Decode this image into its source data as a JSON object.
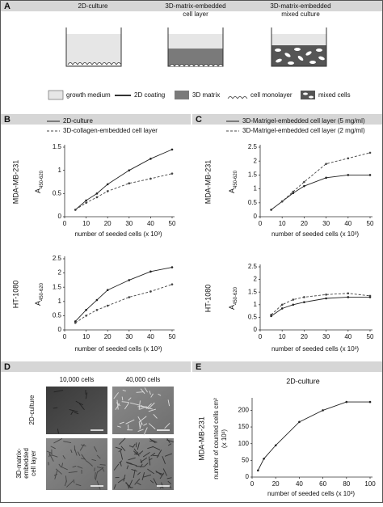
{
  "panel_labels": [
    "A",
    "B",
    "C",
    "D",
    "E"
  ],
  "schematic": {
    "titles": [
      [
        "2D-culture"
      ],
      [
        "3D-matrix-embedded",
        "cell layer"
      ],
      [
        "3D-matrix-embedded",
        "mixed culture"
      ]
    ],
    "legend": [
      "growth medium",
      "2D coating",
      "3D matrix",
      "cell monolayer",
      "mixed cells"
    ]
  },
  "micrographs": {
    "columns": [
      "10,000 cells",
      "40,000 cells"
    ],
    "rows": [
      [
        "2D-culture"
      ],
      [
        "3D-matrix-",
        "embedded",
        "cell layer"
      ]
    ]
  },
  "chart_data": [
    {
      "type": "line",
      "row_label": "MDA-MB-231",
      "ylabel": "A",
      "ylabel_sub": "450-620",
      "xlabel": "number of seeded cells (x 10³)",
      "x": [
        5,
        10,
        15,
        20,
        30,
        40,
        50
      ],
      "xlim": [
        0,
        50
      ],
      "xticks": [
        0,
        10,
        20,
        30,
        40,
        50
      ],
      "ylim": [
        0,
        1.5
      ],
      "yticks": [
        0,
        0.5,
        1,
        1.5
      ],
      "series": [
        {
          "name": "2D-culture",
          "color": "#222222",
          "line_style": "solid",
          "values": [
            0.15,
            0.35,
            0.5,
            0.7,
            1.0,
            1.25,
            1.45
          ]
        },
        {
          "name": "3D-collagen-embedded cell layer",
          "color": "#444444",
          "line_style": "dashed",
          "values": [
            0.15,
            0.3,
            0.42,
            0.55,
            0.72,
            0.82,
            0.93
          ]
        }
      ]
    },
    {
      "type": "line",
      "row_label": "HT-1080",
      "ylabel": "A",
      "ylabel_sub": "450-620",
      "xlabel": "number of seeded cells (x 10³)",
      "x": [
        5,
        10,
        15,
        20,
        30,
        40,
        50
      ],
      "xlim": [
        0,
        50
      ],
      "xticks": [
        0,
        10,
        20,
        30,
        40,
        50
      ],
      "ylim": [
        0,
        2.5
      ],
      "yticks": [
        0,
        0.5,
        1,
        1.5,
        2,
        2.5
      ],
      "series": [
        {
          "color": "#222222",
          "line_style": "solid",
          "values": [
            0.3,
            0.7,
            1.05,
            1.4,
            1.75,
            2.05,
            2.2
          ]
        },
        {
          "color": "#444444",
          "line_style": "dashed",
          "values": [
            0.25,
            0.5,
            0.7,
            0.85,
            1.15,
            1.35,
            1.6
          ]
        }
      ]
    },
    {
      "type": "line",
      "row_label": "MDA-MB-231",
      "ylabel": "A",
      "ylabel_sub": "450-620",
      "xlabel": "number of seeded cells (x 10³)",
      "x": [
        5,
        10,
        15,
        20,
        30,
        40,
        50
      ],
      "xlim": [
        0,
        50
      ],
      "xticks": [
        0,
        10,
        20,
        30,
        40,
        50
      ],
      "ylim": [
        0,
        2.5
      ],
      "yticks": [
        0,
        0.5,
        1,
        1.5,
        2,
        2.5
      ],
      "series": [
        {
          "name": "3D-Matrigel-embedded cell layer (5 mg/ml)",
          "color": "#222222",
          "line_style": "solid",
          "values": [
            0.25,
            0.55,
            0.85,
            1.1,
            1.4,
            1.5,
            1.5
          ]
        },
        {
          "name": "3D-Matrigel-embedded cell layer (2 mg/ml)",
          "color": "#444444",
          "line_style": "dashed",
          "values": [
            0.25,
            0.55,
            0.9,
            1.25,
            1.9,
            2.1,
            2.3
          ]
        }
      ]
    },
    {
      "type": "line",
      "row_label": "HT-1080",
      "ylabel": "A",
      "ylabel_sub": "450-620",
      "xlabel": "number of seeded cells (x 10³)",
      "x": [
        5,
        10,
        15,
        20,
        30,
        40,
        50
      ],
      "xlim": [
        0,
        50
      ],
      "xticks": [
        0,
        10,
        20,
        30,
        40,
        50
      ],
      "ylim": [
        0,
        2.5
      ],
      "yticks": [
        0,
        0.5,
        1,
        1.5,
        2,
        2.5
      ],
      "series": [
        {
          "color": "#222222",
          "line_style": "solid",
          "values": [
            0.55,
            0.85,
            1.0,
            1.1,
            1.25,
            1.3,
            1.3
          ]
        },
        {
          "color": "#444444",
          "line_style": "dashed",
          "values": [
            0.6,
            1.0,
            1.2,
            1.3,
            1.4,
            1.45,
            1.35
          ]
        }
      ]
    },
    {
      "type": "line",
      "title": "2D-culture",
      "row_label": "MDA-MB-231",
      "ylabel": "number of counted cells cm²",
      "ylabel_unit": "(x 10³)",
      "xlabel": "number of seeded cells (x 10³)",
      "x": [
        5,
        10,
        20,
        40,
        60,
        80,
        100
      ],
      "xlim": [
        0,
        100
      ],
      "xticks": [
        0,
        20,
        40,
        60,
        80,
        100
      ],
      "ylim": [
        0,
        230
      ],
      "yticks": [
        0,
        50,
        100,
        150,
        200
      ],
      "series": [
        {
          "color": "#222222",
          "line_style": "solid",
          "values": [
            20,
            55,
            95,
            165,
            200,
            225,
            225
          ]
        }
      ]
    }
  ]
}
